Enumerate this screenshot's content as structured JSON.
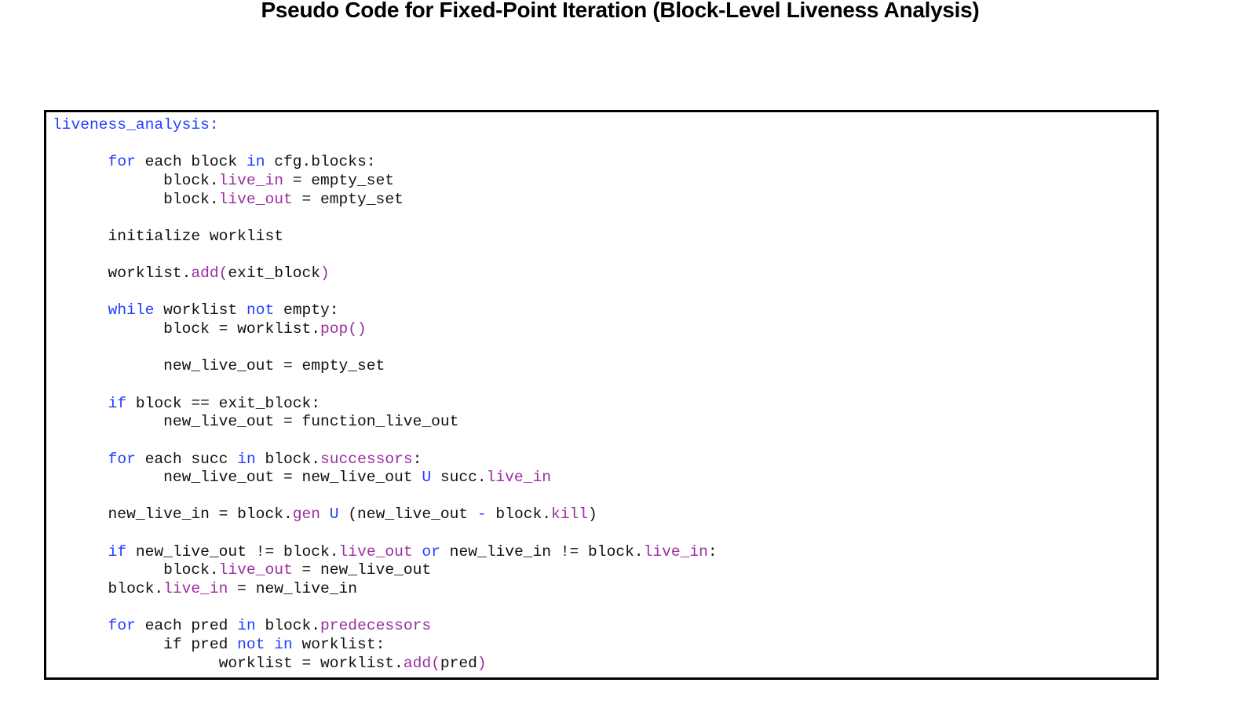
{
  "title": "Pseudo Code for Fixed-Point Iteration (Block-Level Liveness Analysis)",
  "colors": {
    "keyword": "#1f3fff",
    "member": "#9a2ea0",
    "text": "#111111"
  },
  "code_lines": [
    [
      [
        "liveness_analysis:",
        "k"
      ]
    ],
    [],
    [
      [
        "      "
      ],
      [
        "for",
        "k"
      ],
      [
        " each block "
      ],
      [
        "in",
        "k"
      ],
      [
        " cfg.blocks:"
      ]
    ],
    [
      [
        "            block."
      ],
      [
        "live_in",
        "p"
      ],
      [
        " = empty_set"
      ]
    ],
    [
      [
        "            block."
      ],
      [
        "live_out",
        "p"
      ],
      [
        " = empty_set"
      ]
    ],
    [],
    [
      [
        "      initialize worklist"
      ]
    ],
    [],
    [
      [
        "      worklist."
      ],
      [
        "add(",
        "p"
      ],
      [
        "exit_block"
      ],
      [
        ")",
        "p"
      ]
    ],
    [],
    [
      [
        "      "
      ],
      [
        "while",
        "k"
      ],
      [
        " worklist "
      ],
      [
        "not",
        "k"
      ],
      [
        " empty:"
      ]
    ],
    [
      [
        "            block = worklist."
      ],
      [
        "pop()",
        "p"
      ]
    ],
    [],
    [
      [
        "            new_live_out = empty_set"
      ]
    ],
    [],
    [
      [
        "      "
      ],
      [
        "if",
        "k"
      ],
      [
        " block == exit_block:"
      ]
    ],
    [
      [
        "            new_live_out = function_live_out"
      ]
    ],
    [],
    [
      [
        "      "
      ],
      [
        "for",
        "k"
      ],
      [
        " each succ "
      ],
      [
        "in",
        "k"
      ],
      [
        " block."
      ],
      [
        "successors",
        "p"
      ],
      [
        ":"
      ]
    ],
    [
      [
        "            new_live_out = new_live_out "
      ],
      [
        "U",
        "k"
      ],
      [
        " succ."
      ],
      [
        "live_in",
        "p"
      ]
    ],
    [],
    [
      [
        "      new_live_in = block."
      ],
      [
        "gen",
        "p"
      ],
      [
        " "
      ],
      [
        "U",
        "k"
      ],
      [
        " (new_live_out "
      ],
      [
        "-",
        "k"
      ],
      [
        " block."
      ],
      [
        "kill",
        "p"
      ],
      [
        ")"
      ]
    ],
    [],
    [
      [
        "      "
      ],
      [
        "if",
        "k"
      ],
      [
        " new_live_out != block."
      ],
      [
        "live_out",
        "p"
      ],
      [
        " "
      ],
      [
        "or",
        "k"
      ],
      [
        " new_live_in != block."
      ],
      [
        "live_in",
        "p"
      ],
      [
        ":"
      ]
    ],
    [
      [
        "            block."
      ],
      [
        "live_out",
        "p"
      ],
      [
        " = new_live_out"
      ]
    ],
    [
      [
        "      block."
      ],
      [
        "live_in",
        "p"
      ],
      [
        " = new_live_in"
      ]
    ],
    [],
    [
      [
        "      "
      ],
      [
        "for",
        "k"
      ],
      [
        " each pred "
      ],
      [
        "in",
        "k"
      ],
      [
        " block."
      ],
      [
        "predecessors",
        "p"
      ]
    ],
    [
      [
        "            if pred "
      ],
      [
        "not",
        "k"
      ],
      [
        " "
      ],
      [
        "in",
        "k"
      ],
      [
        " worklist:"
      ]
    ],
    [
      [
        "                  worklist = worklist."
      ],
      [
        "add(",
        "p"
      ],
      [
        "pred"
      ],
      [
        ")",
        "p"
      ]
    ]
  ]
}
